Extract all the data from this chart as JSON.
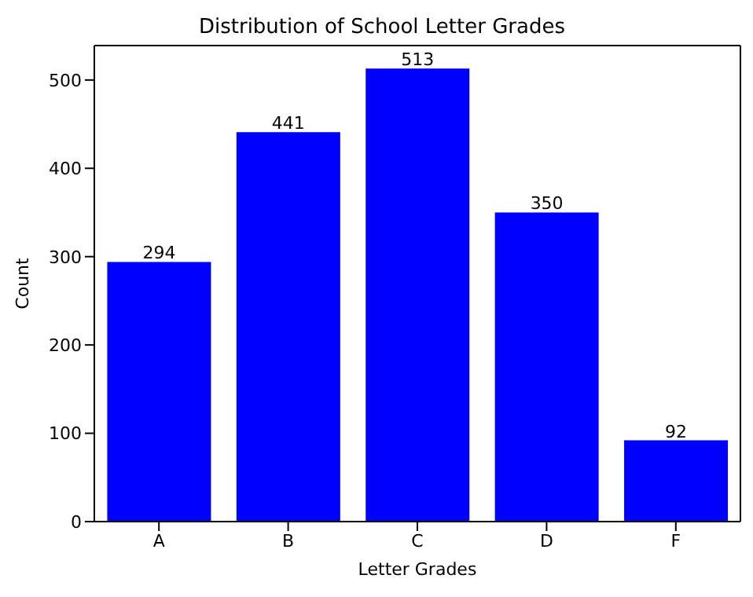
{
  "chart_data": {
    "type": "bar",
    "title": "Distribution of School Letter Grades",
    "xlabel": "Letter Grades",
    "ylabel": "Count",
    "categories": [
      "A",
      "B",
      "C",
      "D",
      "F"
    ],
    "values": [
      294,
      441,
      513,
      350,
      92
    ],
    "color": "#0000ff",
    "ylim": [
      0,
      539
    ],
    "yticks": [
      0,
      100,
      200,
      300,
      400,
      500
    ],
    "grid": false,
    "data_labels": true
  }
}
